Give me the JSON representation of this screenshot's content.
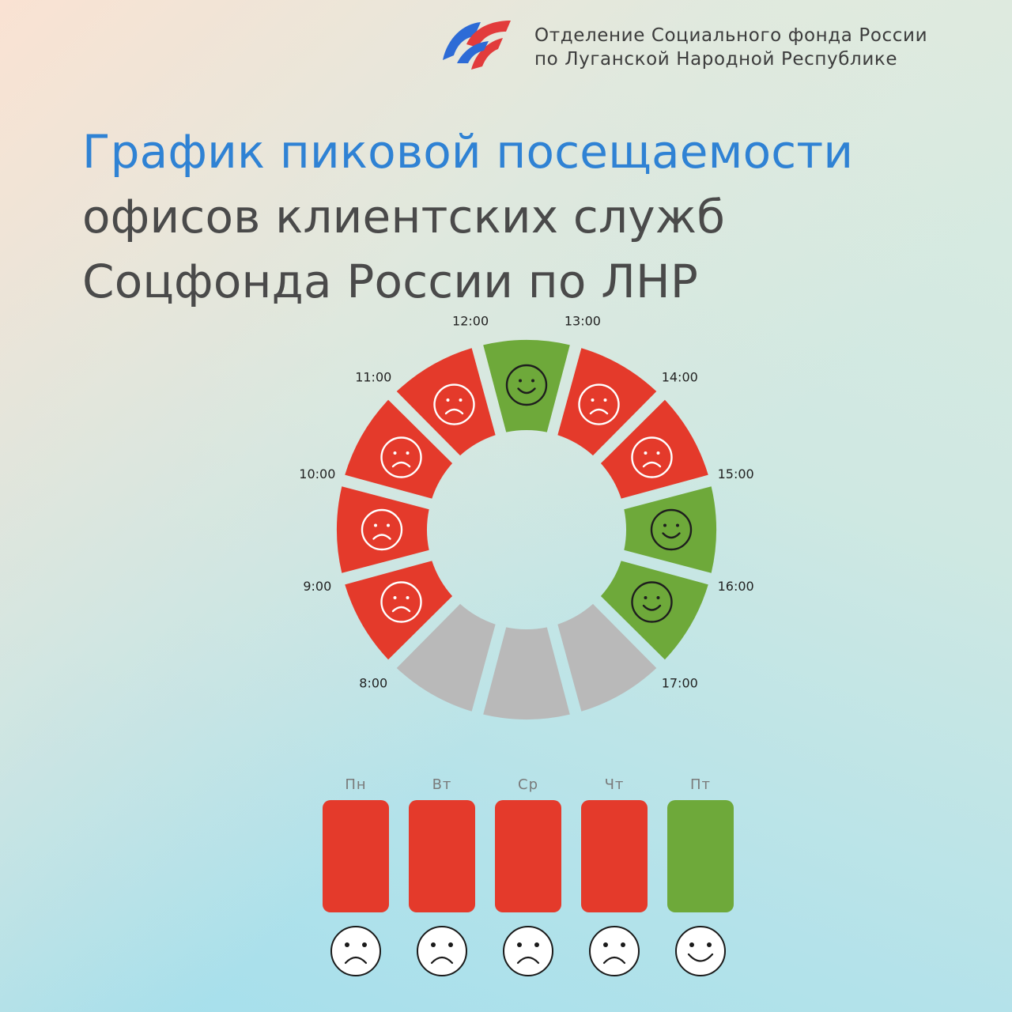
{
  "header": {
    "org_line1": "Отделение Социального фонда России",
    "org_line2": "по Луганской Народной Республике",
    "logo_icon": "sfr-logo-icon"
  },
  "title": {
    "line1": "График пиковой посещаемости",
    "line2": "офисов клиентских служб",
    "line3": "Соцфонда России по ЛНР"
  },
  "colors": {
    "busy": "#e43a2b",
    "free": "#6ea93a",
    "off": "#b9b9b9",
    "title_accent": "#2f82d4"
  },
  "hours": [
    {
      "time": "8:00",
      "status": "busy"
    },
    {
      "time": "9:00",
      "status": "busy"
    },
    {
      "time": "10:00",
      "status": "busy"
    },
    {
      "time": "11:00",
      "status": "busy"
    },
    {
      "time": "12:00",
      "status": "free"
    },
    {
      "time": "13:00",
      "status": "busy"
    },
    {
      "time": "14:00",
      "status": "busy"
    },
    {
      "time": "15:00",
      "status": "free"
    },
    {
      "time": "16:00",
      "status": "free"
    },
    {
      "time": "17:00",
      "status": null
    }
  ],
  "days": [
    {
      "label": "Пн",
      "status": "busy"
    },
    {
      "label": "Вт",
      "status": "busy"
    },
    {
      "label": "Ср",
      "status": "busy"
    },
    {
      "label": "Чт",
      "status": "busy"
    },
    {
      "label": "Пт",
      "status": "free"
    }
  ]
}
